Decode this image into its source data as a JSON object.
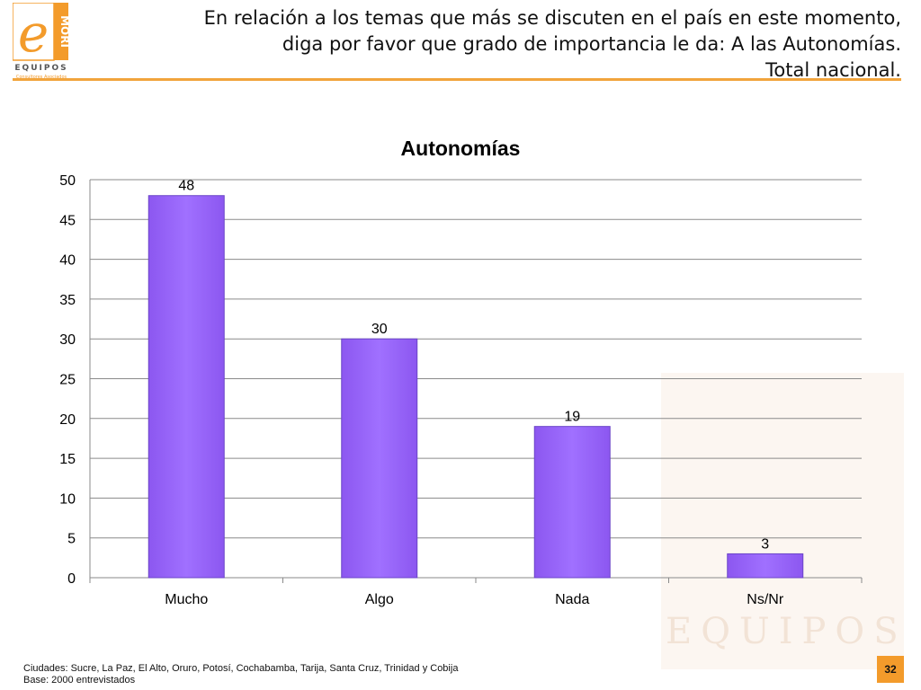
{
  "header": {
    "title_lines": [
      "En relación a los temas que más se discuten en el país en este momento,",
      "diga por favor que grado de importancia le da: A las Autonomías.",
      "Total nacional."
    ]
  },
  "logo": {
    "brand_top": "MORI",
    "brand_bottom": "EQUIPOS",
    "tagline": "Consultores Asociados",
    "accent_color": "#f39b2b"
  },
  "watermark": {
    "text": "EQUIPOS"
  },
  "chart_data": {
    "type": "bar",
    "title": "Autonomías",
    "categories": [
      "Mucho",
      "Algo",
      "Nada",
      "Ns/Nr"
    ],
    "values": [
      48,
      30,
      19,
      3
    ],
    "ylim": [
      0,
      50
    ],
    "yticks": [
      0,
      5,
      10,
      15,
      20,
      25,
      30,
      35,
      40,
      45,
      50
    ],
    "grid": true,
    "bar_color": "#a070ff",
    "legend": "none"
  },
  "footer": {
    "cities": "Ciudades: Sucre, La Paz, El Alto, Oruro, Potosí, Cochabamba, Tarija, Santa Cruz, Trinidad y Cobija",
    "base": "Base: 2000 entrevistados"
  },
  "page": {
    "number": "32"
  }
}
